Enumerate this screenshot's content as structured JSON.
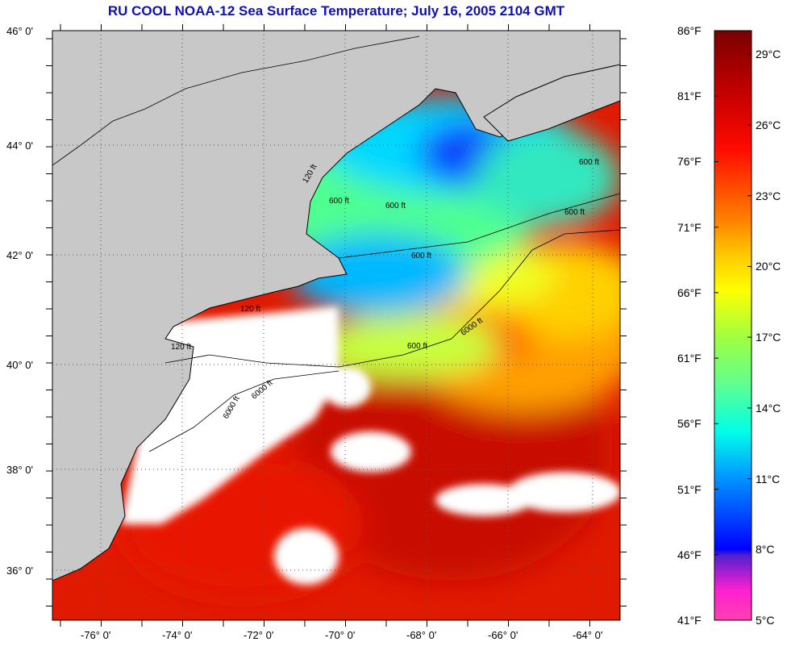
{
  "title": "RU COOL  NOAA-12  Sea Surface Temperature;  July 16, 2005 2104 GMT",
  "map": {
    "lat_labels": [
      "46° 0'",
      "44° 0'",
      "42° 0'",
      "40° 0'",
      "38° 0'",
      "36° 0'"
    ],
    "lon_labels": [
      "-76° 0'",
      "-74° 0'",
      "-72° 0'",
      "-70° 0'",
      "-68° 0'",
      "-66° 0'",
      "-64° 0'"
    ],
    "contour_labels": [
      "600 ft",
      "600 ft",
      "600 ft",
      "600 ft",
      "600 ft",
      "600 ft",
      "6000 ft",
      "6000 ft",
      "6000 ft",
      "120 ft",
      "120 ft",
      "120 ft"
    ],
    "land_color": "#c8c8c8",
    "cloud_color": "#ffffff"
  },
  "colorbar": {
    "fahrenheit_labels": [
      "86°F",
      "81°F",
      "76°F",
      "71°F",
      "66°F",
      "61°F",
      "56°F",
      "51°F",
      "46°F",
      "41°F"
    ],
    "celsius_labels": [
      "29°C",
      "26°C",
      "23°C",
      "20°C",
      "17°C",
      "14°C",
      "11°C",
      "8°C",
      "5°C"
    ],
    "range_f": [
      41,
      86
    ]
  }
}
